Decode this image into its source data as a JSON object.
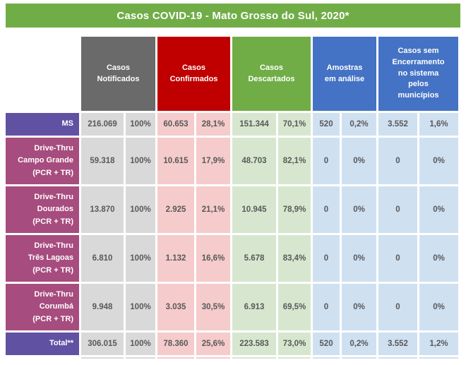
{
  "chart_data": {
    "type": "table",
    "title": "Casos COVID-19 - Mato Grosso do Sul, 2020*",
    "title_bg": "#70AD47",
    "value_text_color": "#595959",
    "column_groups": [
      {
        "label": "Casos\nNotificados",
        "name": "casos-notificados",
        "header_color": "#6A6A6A",
        "cell_color": "#D9D9D9",
        "subcolumns": [
          "casos",
          "percentual"
        ]
      },
      {
        "label": "Casos\nConfirmados",
        "name": "casos-confirmados",
        "header_color": "#C00000",
        "cell_color": "#F5CBCB",
        "subcolumns": [
          "casos",
          "percentual"
        ]
      },
      {
        "label": "Casos\nDescartados",
        "name": "casos-descartados",
        "header_color": "#70AD47",
        "cell_color": "#D7E7CF",
        "subcolumns": [
          "casos",
          "percentual"
        ]
      },
      {
        "label": "Amostras\nem análise",
        "name": "amostras-em-analise",
        "header_color": "#4472C4",
        "cell_color": "#CFE0F1",
        "subcolumns": [
          "casos",
          "percentual"
        ]
      },
      {
        "label": "Casos sem\nEncerramento\nno sistema\npelos\nmunicípios",
        "name": "casos-sem-encerramento",
        "header_color": "#4472C4",
        "cell_color": "#CFE0F1",
        "subcolumns": [
          "casos",
          "percentual"
        ]
      }
    ],
    "rows": [
      {
        "name": "ms",
        "label": "MS",
        "label_color": "#6151A2",
        "size": "short",
        "values": [
          "216.069",
          "100%",
          "60.653",
          "28,1%",
          "151.344",
          "70,1%",
          "520",
          "0,2%",
          "3.552",
          "1,6%"
        ]
      },
      {
        "name": "drive-thru-campo-grande",
        "label": "Drive-Thru\nCampo Grande\n(PCR + TR)",
        "label_color": "#A74C7E",
        "size": "tall",
        "values": [
          "59.318",
          "100%",
          "10.615",
          "17,9%",
          "48.703",
          "82,1%",
          "0",
          "0%",
          "0",
          "0%"
        ]
      },
      {
        "name": "drive-thru-dourados",
        "label": "Drive-Thru\nDourados\n(PCR + TR)",
        "label_color": "#A74C7E",
        "size": "tall",
        "values": [
          "13.870",
          "100%",
          "2.925",
          "21,1%",
          "10.945",
          "78,9%",
          "0",
          "0%",
          "0",
          "0%"
        ]
      },
      {
        "name": "drive-thru-tres-lagoas",
        "label": "Drive-Thru\nTrês Lagoas\n(PCR + TR)",
        "label_color": "#A74C7E",
        "size": "tall",
        "values": [
          "6.810",
          "100%",
          "1.132",
          "16,6%",
          "5.678",
          "83,4%",
          "0",
          "0%",
          "0",
          "0%"
        ]
      },
      {
        "name": "drive-thru-corumba",
        "label": "Drive-Thru\nCorumbá\n(PCR + TR)",
        "label_color": "#A74C7E",
        "size": "tall",
        "values": [
          "9.948",
          "100%",
          "3.035",
          "30,5%",
          "6.913",
          "69,5%",
          "0",
          "0%",
          "0",
          "0%"
        ]
      },
      {
        "name": "total",
        "label": "Total**",
        "label_color": "#6151A2",
        "size": "short",
        "values": [
          "306.015",
          "100%",
          "78.360",
          "25,6%",
          "223.583",
          "73,0%",
          "520",
          "0,2%",
          "3.552",
          "1,2%"
        ]
      }
    ]
  }
}
